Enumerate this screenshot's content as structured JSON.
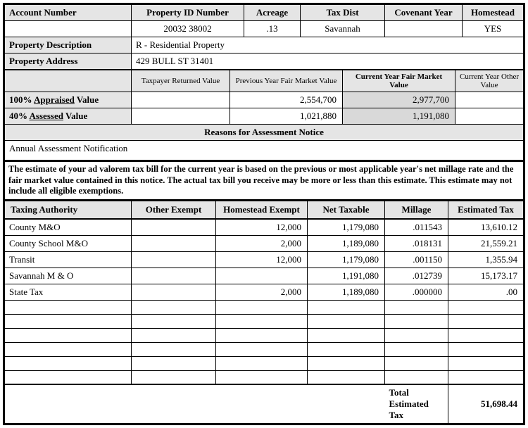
{
  "top": {
    "headers": {
      "account": "Account Number",
      "propId": "Property ID Number",
      "acreage": "Acreage",
      "taxDist": "Tax Dist",
      "covYear": "Covenant Year",
      "homestead": "Homestead"
    },
    "values": {
      "account": "",
      "propId": "20032 38002",
      "acreage": ".13",
      "taxDist": "Savannah",
      "covYear": "",
      "homestead": "YES"
    },
    "descLabel": "Property Description",
    "descValue": "R - Residential Property",
    "addrLabel": "Property Address",
    "addrValue": "429 BULL ST 31401"
  },
  "valCols": {
    "c1": "Taxpayer Returned Value",
    "c2": "Previous Year Fair Market Value",
    "c3": "Current Year Fair Market Value",
    "c4": "Current Year Other Value"
  },
  "valRows": {
    "appraised": {
      "label_pre": "100% ",
      "label_u": "Appraised",
      "label_post": " Value",
      "v1": "",
      "v2": "2,554,700",
      "v3": "2,977,700",
      "v4": ""
    },
    "assessed": {
      "label_pre": "40% ",
      "label_u": "Assessed",
      "label_post": " Value",
      "v1": "",
      "v2": "1,021,880",
      "v3": "1,191,080",
      "v4": ""
    }
  },
  "reasonsHdr": "Reasons for Assessment Notice",
  "reasonsBody": "Annual Assessment Notification",
  "note": "The estimate of your ad valorem tax bill for the current year is based on the previous or most applicable year's net millage rate and the fair market value contained in this notice. The actual tax bill you receive may be more or less than this estimate. This estimate may not include all eligible exemptions.",
  "taxHeaders": {
    "auth": "Taxing Authority",
    "other": "Other Exempt",
    "home": "Homestead Exempt",
    "net": "Net Taxable",
    "mill": "Millage",
    "est": "Estimated Tax"
  },
  "taxRows": [
    {
      "auth": "County M&O",
      "other": "",
      "home": "12,000",
      "net": "1,179,080",
      "mill": ".011543",
      "est": "13,610.12"
    },
    {
      "auth": "County School M&O",
      "other": "",
      "home": "2,000",
      "net": "1,189,080",
      "mill": ".018131",
      "est": "21,559.21"
    },
    {
      "auth": "Transit",
      "other": "",
      "home": "12,000",
      "net": "1,179,080",
      "mill": ".001150",
      "est": "1,355.94"
    },
    {
      "auth": "Savannah M & O",
      "other": "",
      "home": "",
      "net": "1,191,080",
      "mill": ".012739",
      "est": "15,173.17"
    },
    {
      "auth": "State Tax",
      "other": "",
      "home": "2,000",
      "net": "1,189,080",
      "mill": ".000000",
      "est": ".00"
    }
  ],
  "total": {
    "label": "Total Estimated Tax",
    "value": "51,698.44"
  },
  "colors": {
    "headerBg": "#e5e5e5",
    "shadeBg": "#d9d9d9",
    "border": "#000000"
  }
}
